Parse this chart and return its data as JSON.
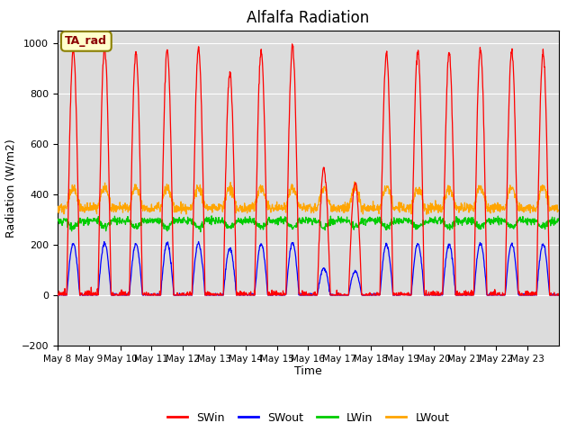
{
  "title": "Alfalfa Radiation",
  "ylabel": "Radiation (W/m2)",
  "xlabel": "Time",
  "ylim": [
    -200,
    1050
  ],
  "annotation_text": "TA_rad",
  "legend": [
    "SWin",
    "SWout",
    "LWin",
    "LWout"
  ],
  "colors": {
    "SWin": "#FF0000",
    "SWout": "#0000FF",
    "LWin": "#00CC00",
    "LWout": "#FFA500"
  },
  "background_color": "#DCDCDC",
  "fig_background": "#FFFFFF",
  "grid_color": "#FFFFFF",
  "x_ticks": [
    "May 8",
    "May 9",
    "May 10",
    "May 11",
    "May 12",
    "May 13",
    "May 14",
    "May 15",
    "May 16",
    "May 17",
    "May 18",
    "May 19",
    "May 20",
    "May 21",
    "May 22",
    "May 23"
  ],
  "n_days": 16,
  "dt": 0.25
}
